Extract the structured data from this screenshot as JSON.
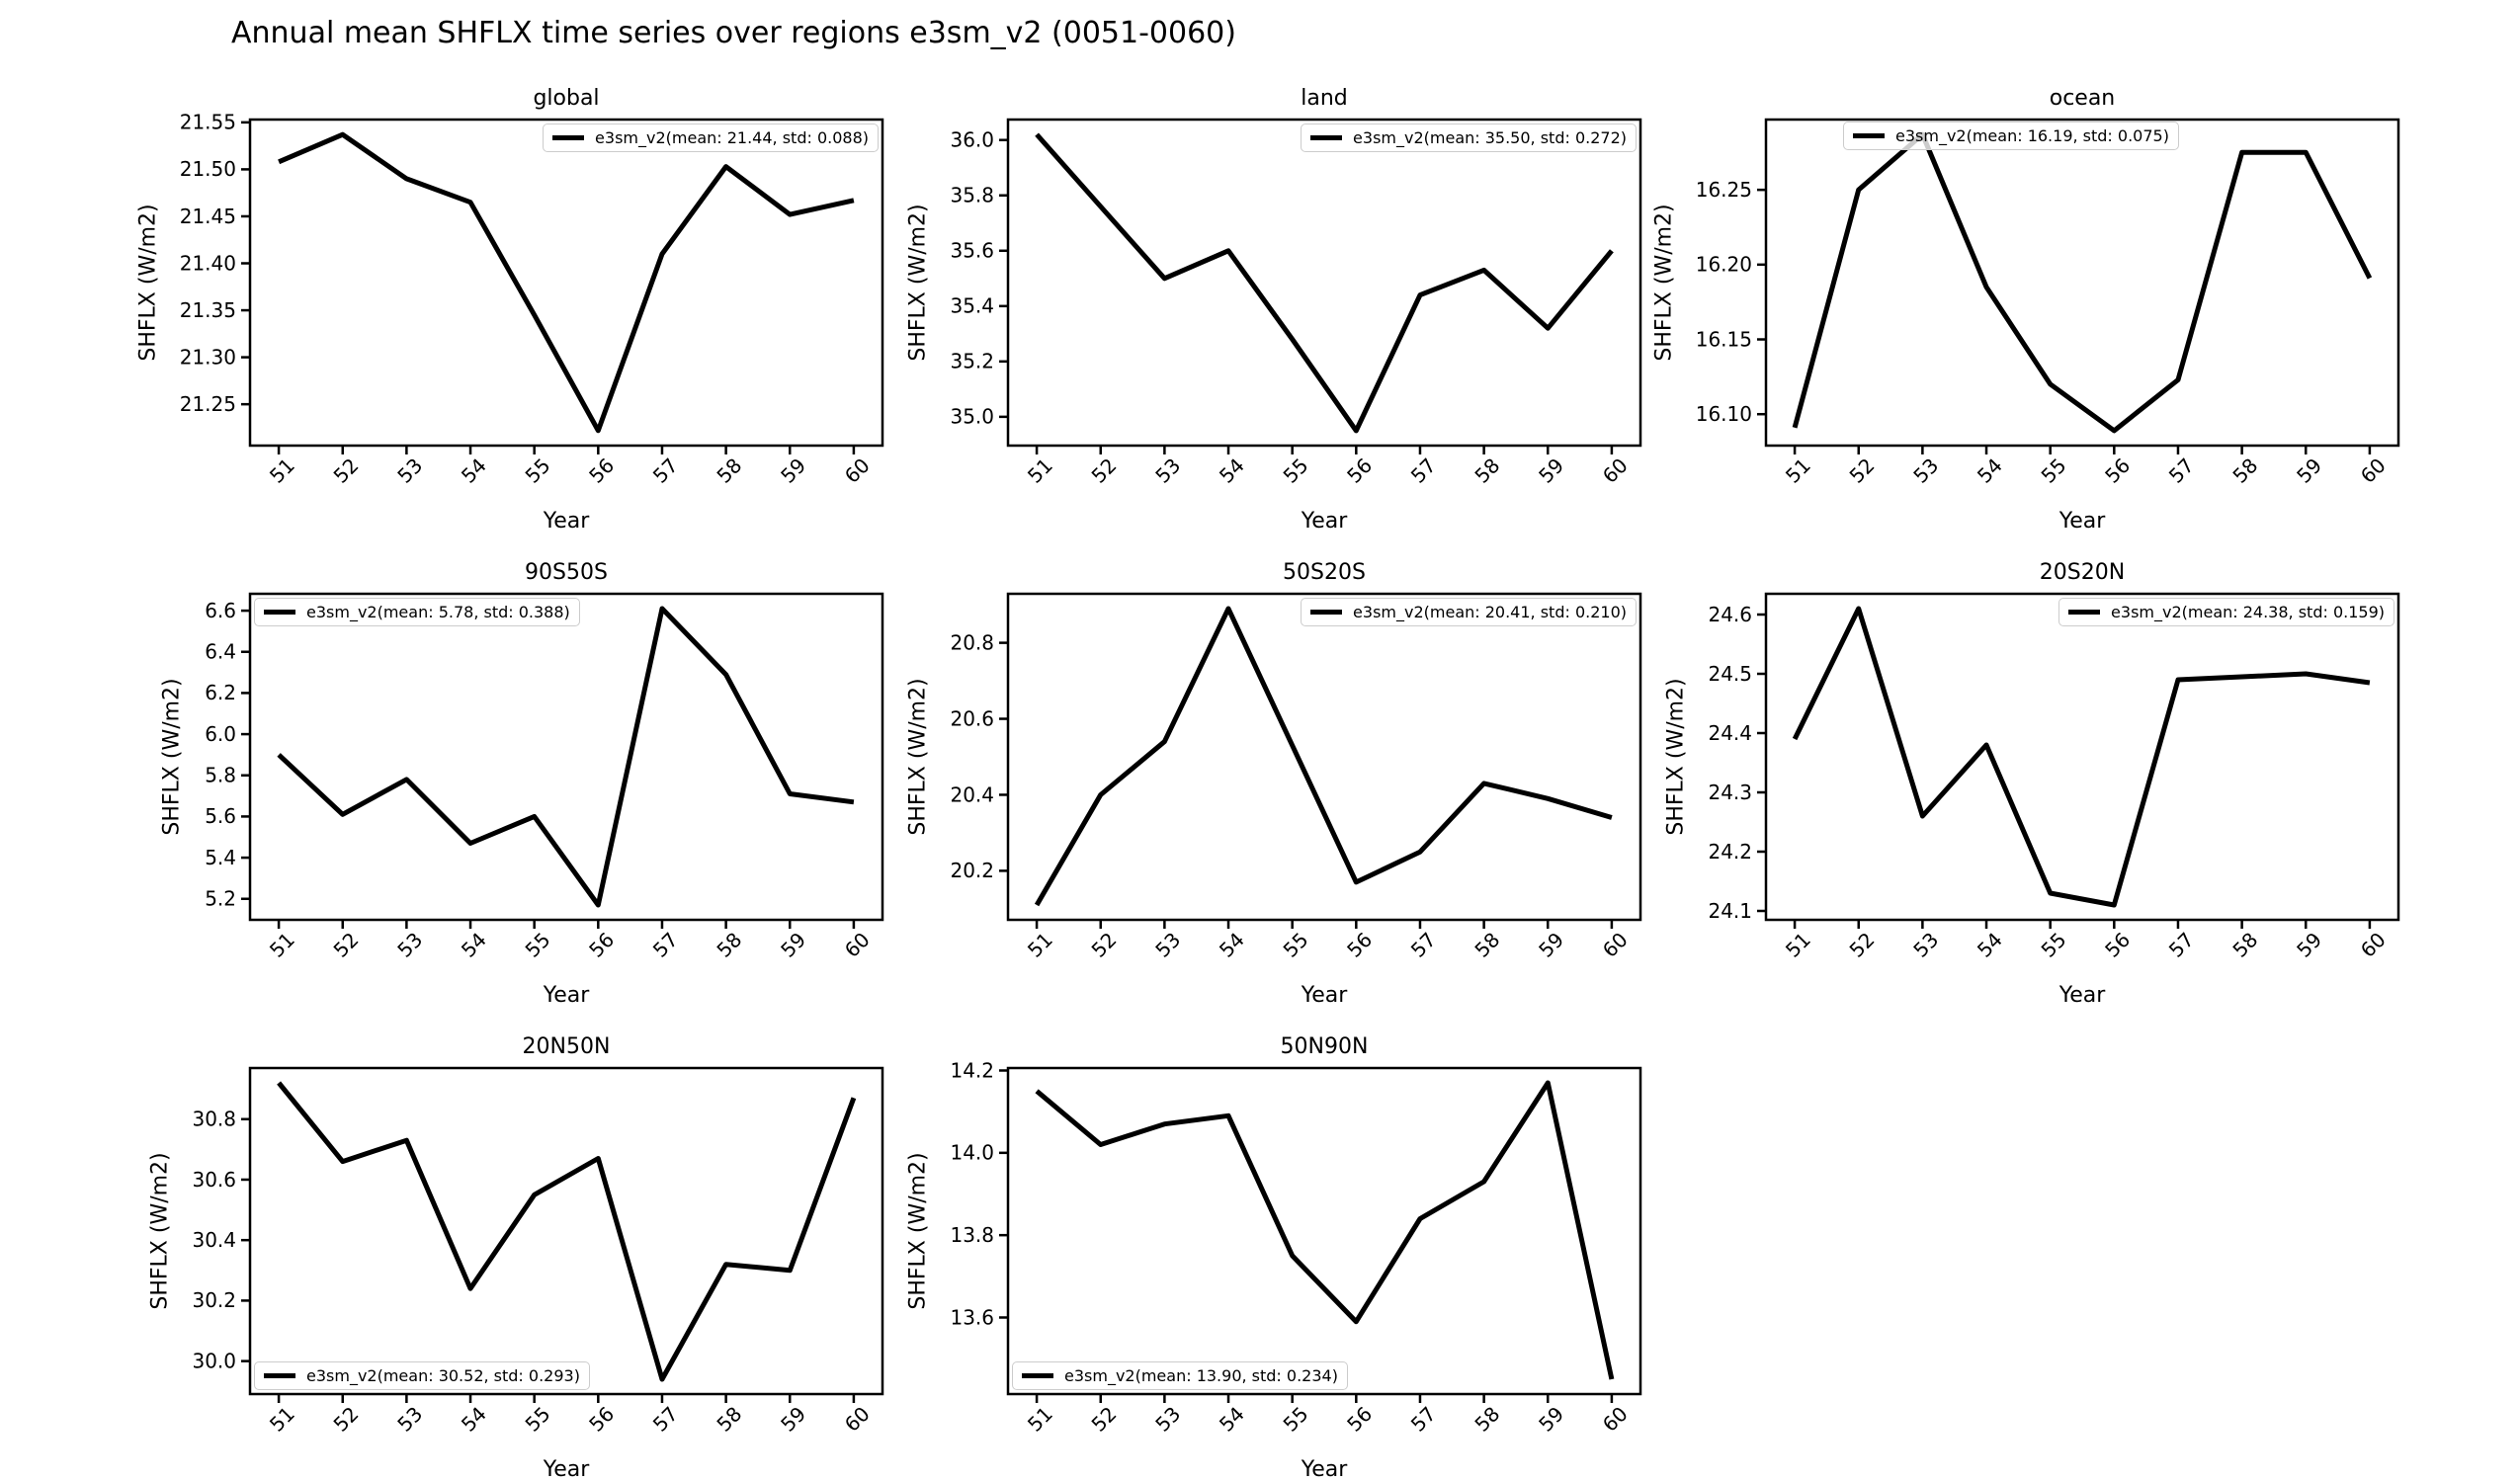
{
  "figure": {
    "suptitle": "Annual mean SHFLX time series over regions e3sm_v2 (0051-0060)",
    "background_color": "#ffffff",
    "line_color": "#000000",
    "text_color": "#000000",
    "legend_border_color": "#cccccc"
  },
  "chart_data": [
    {
      "type": "line",
      "title": "global",
      "xlabel": "Year",
      "ylabel": "SHFLX (W/m2)",
      "x": [
        51,
        52,
        53,
        54,
        55,
        56,
        57,
        58,
        59,
        60
      ],
      "values": [
        21.508,
        21.537,
        21.49,
        21.465,
        21.345,
        21.222,
        21.41,
        21.503,
        21.452,
        21.467
      ],
      "xlim": [
        50.55,
        60.45
      ],
      "ylim": [
        21.206,
        21.553
      ],
      "yticks": [
        21.25,
        21.3,
        21.35,
        21.4,
        21.45,
        21.5,
        21.55
      ],
      "ytick_labels": [
        "21.25",
        "21.30",
        "21.35",
        "21.40",
        "21.45",
        "21.50",
        "21.55"
      ],
      "xtick_labels": [
        "51",
        "52",
        "53",
        "54",
        "55",
        "56",
        "57",
        "58",
        "59",
        "60"
      ],
      "grid": false,
      "legend": "e3sm_v2(mean: 21.44, std: 0.088)",
      "legend_loc": "upper-right"
    },
    {
      "type": "line",
      "title": "land",
      "xlabel": "Year",
      "ylabel": "SHFLX (W/m2)",
      "x": [
        51,
        52,
        53,
        54,
        55,
        56,
        57,
        58,
        59,
        60
      ],
      "values": [
        36.02,
        35.76,
        35.5,
        35.6,
        35.28,
        34.95,
        35.44,
        35.53,
        35.32,
        35.6
      ],
      "xlim": [
        50.55,
        60.45
      ],
      "ylim": [
        34.896,
        36.074
      ],
      "yticks": [
        35.0,
        35.2,
        35.4,
        35.6,
        35.8,
        36.0
      ],
      "ytick_labels": [
        "35.0",
        "35.2",
        "35.4",
        "35.6",
        "35.8",
        "36.0"
      ],
      "xtick_labels": [
        "51",
        "52",
        "53",
        "54",
        "55",
        "56",
        "57",
        "58",
        "59",
        "60"
      ],
      "grid": false,
      "legend": "e3sm_v2(mean: 35.50, std: 0.272)",
      "legend_loc": "upper-right"
    },
    {
      "type": "line",
      "title": "ocean",
      "xlabel": "Year",
      "ylabel": "SHFLX (W/m2)",
      "x": [
        51,
        52,
        53,
        54,
        55,
        56,
        57,
        58,
        59,
        60
      ],
      "values": [
        16.091,
        16.25,
        16.287,
        16.185,
        16.12,
        16.089,
        16.123,
        16.275,
        16.275,
        16.191
      ],
      "xlim": [
        50.55,
        60.45
      ],
      "ylim": [
        16.079,
        16.297
      ],
      "yticks": [
        16.1,
        16.15,
        16.2,
        16.25
      ],
      "ytick_labels": [
        "16.10",
        "16.15",
        "16.20",
        "16.25"
      ],
      "xtick_labels": [
        "51",
        "52",
        "53",
        "54",
        "55",
        "56",
        "57",
        "58",
        "59",
        "60"
      ],
      "grid": false,
      "legend": "e3sm_v2(mean: 16.19, std: 0.075)",
      "legend_loc": "upper-left-offset"
    },
    {
      "type": "line",
      "title": "90S50S",
      "xlabel": "Year",
      "ylabel": "SHFLX (W/m2)",
      "x": [
        51,
        52,
        53,
        54,
        55,
        56,
        57,
        58,
        59,
        60
      ],
      "values": [
        5.9,
        5.61,
        5.78,
        5.47,
        5.6,
        5.17,
        6.61,
        6.29,
        5.71,
        5.67
      ],
      "xlim": [
        50.55,
        60.45
      ],
      "ylim": [
        5.098,
        6.682
      ],
      "yticks": [
        5.2,
        5.4,
        5.6,
        5.8,
        6.0,
        6.2,
        6.4,
        6.6
      ],
      "ytick_labels": [
        "5.2",
        "5.4",
        "5.6",
        "5.8",
        "6.0",
        "6.2",
        "6.4",
        "6.6"
      ],
      "xtick_labels": [
        "51",
        "52",
        "53",
        "54",
        "55",
        "56",
        "57",
        "58",
        "59",
        "60"
      ],
      "grid": false,
      "legend": "e3sm_v2(mean: 5.78, std: 0.388)",
      "legend_loc": "upper-left"
    },
    {
      "type": "line",
      "title": "50S20S",
      "xlabel": "Year",
      "ylabel": "SHFLX (W/m2)",
      "x": [
        51,
        52,
        53,
        54,
        55,
        56,
        57,
        58,
        59,
        60
      ],
      "values": [
        20.11,
        20.4,
        20.54,
        20.89,
        20.53,
        20.17,
        20.25,
        20.43,
        20.39,
        20.34
      ],
      "xlim": [
        50.55,
        60.45
      ],
      "ylim": [
        20.071,
        20.929
      ],
      "yticks": [
        20.2,
        20.4,
        20.6,
        20.8
      ],
      "ytick_labels": [
        "20.2",
        "20.4",
        "20.6",
        "20.8"
      ],
      "xtick_labels": [
        "51",
        "52",
        "53",
        "54",
        "55",
        "56",
        "57",
        "58",
        "59",
        "60"
      ],
      "grid": false,
      "legend": "e3sm_v2(mean: 20.41, std: 0.210)",
      "legend_loc": "upper-right"
    },
    {
      "type": "line",
      "title": "20S20N",
      "xlabel": "Year",
      "ylabel": "SHFLX (W/m2)",
      "x": [
        51,
        52,
        53,
        54,
        55,
        56,
        57,
        58,
        59,
        60
      ],
      "values": [
        24.39,
        24.61,
        24.26,
        24.38,
        24.13,
        24.11,
        24.49,
        24.495,
        24.5,
        24.485
      ],
      "xlim": [
        50.55,
        60.45
      ],
      "ylim": [
        24.085,
        24.635
      ],
      "yticks": [
        24.1,
        24.2,
        24.3,
        24.4,
        24.5,
        24.6
      ],
      "ytick_labels": [
        "24.1",
        "24.2",
        "24.3",
        "24.4",
        "24.5",
        "24.6"
      ],
      "xtick_labels": [
        "51",
        "52",
        "53",
        "54",
        "55",
        "56",
        "57",
        "58",
        "59",
        "60"
      ],
      "grid": false,
      "legend": "e3sm_v2(mean: 24.38, std: 0.159)",
      "legend_loc": "upper-right"
    },
    {
      "type": "line",
      "title": "20N50N",
      "xlabel": "Year",
      "ylabel": "SHFLX (W/m2)",
      "x": [
        51,
        52,
        53,
        54,
        55,
        56,
        57,
        58,
        59,
        60
      ],
      "values": [
        30.92,
        30.66,
        30.73,
        30.24,
        30.55,
        30.67,
        29.94,
        30.32,
        30.3,
        30.87
      ],
      "xlim": [
        50.55,
        60.45
      ],
      "ylim": [
        29.891,
        30.969
      ],
      "yticks": [
        30.0,
        30.2,
        30.4,
        30.6,
        30.8
      ],
      "ytick_labels": [
        "30.0",
        "30.2",
        "30.4",
        "30.6",
        "30.8"
      ],
      "xtick_labels": [
        "51",
        "52",
        "53",
        "54",
        "55",
        "56",
        "57",
        "58",
        "59",
        "60"
      ],
      "grid": false,
      "legend": "e3sm_v2(mean: 30.52, std: 0.293)",
      "legend_loc": "lower-left"
    },
    {
      "type": "line",
      "title": "50N90N",
      "xlabel": "Year",
      "ylabel": "SHFLX (W/m2)",
      "x": [
        51,
        52,
        53,
        54,
        55,
        56,
        57,
        58,
        59,
        60
      ],
      "values": [
        14.15,
        14.02,
        14.07,
        14.09,
        13.75,
        13.59,
        13.84,
        13.93,
        14.17,
        13.45
      ],
      "xlim": [
        50.55,
        60.45
      ],
      "ylim": [
        13.414,
        14.206
      ],
      "yticks": [
        13.6,
        13.8,
        14.0,
        14.2
      ],
      "ytick_labels": [
        "13.6",
        "13.8",
        "14.0",
        "14.2"
      ],
      "xtick_labels": [
        "51",
        "52",
        "53",
        "54",
        "55",
        "56",
        "57",
        "58",
        "59",
        "60"
      ],
      "grid": false,
      "legend": "e3sm_v2(mean: 13.90, std: 0.234)",
      "legend_loc": "lower-left"
    }
  ]
}
